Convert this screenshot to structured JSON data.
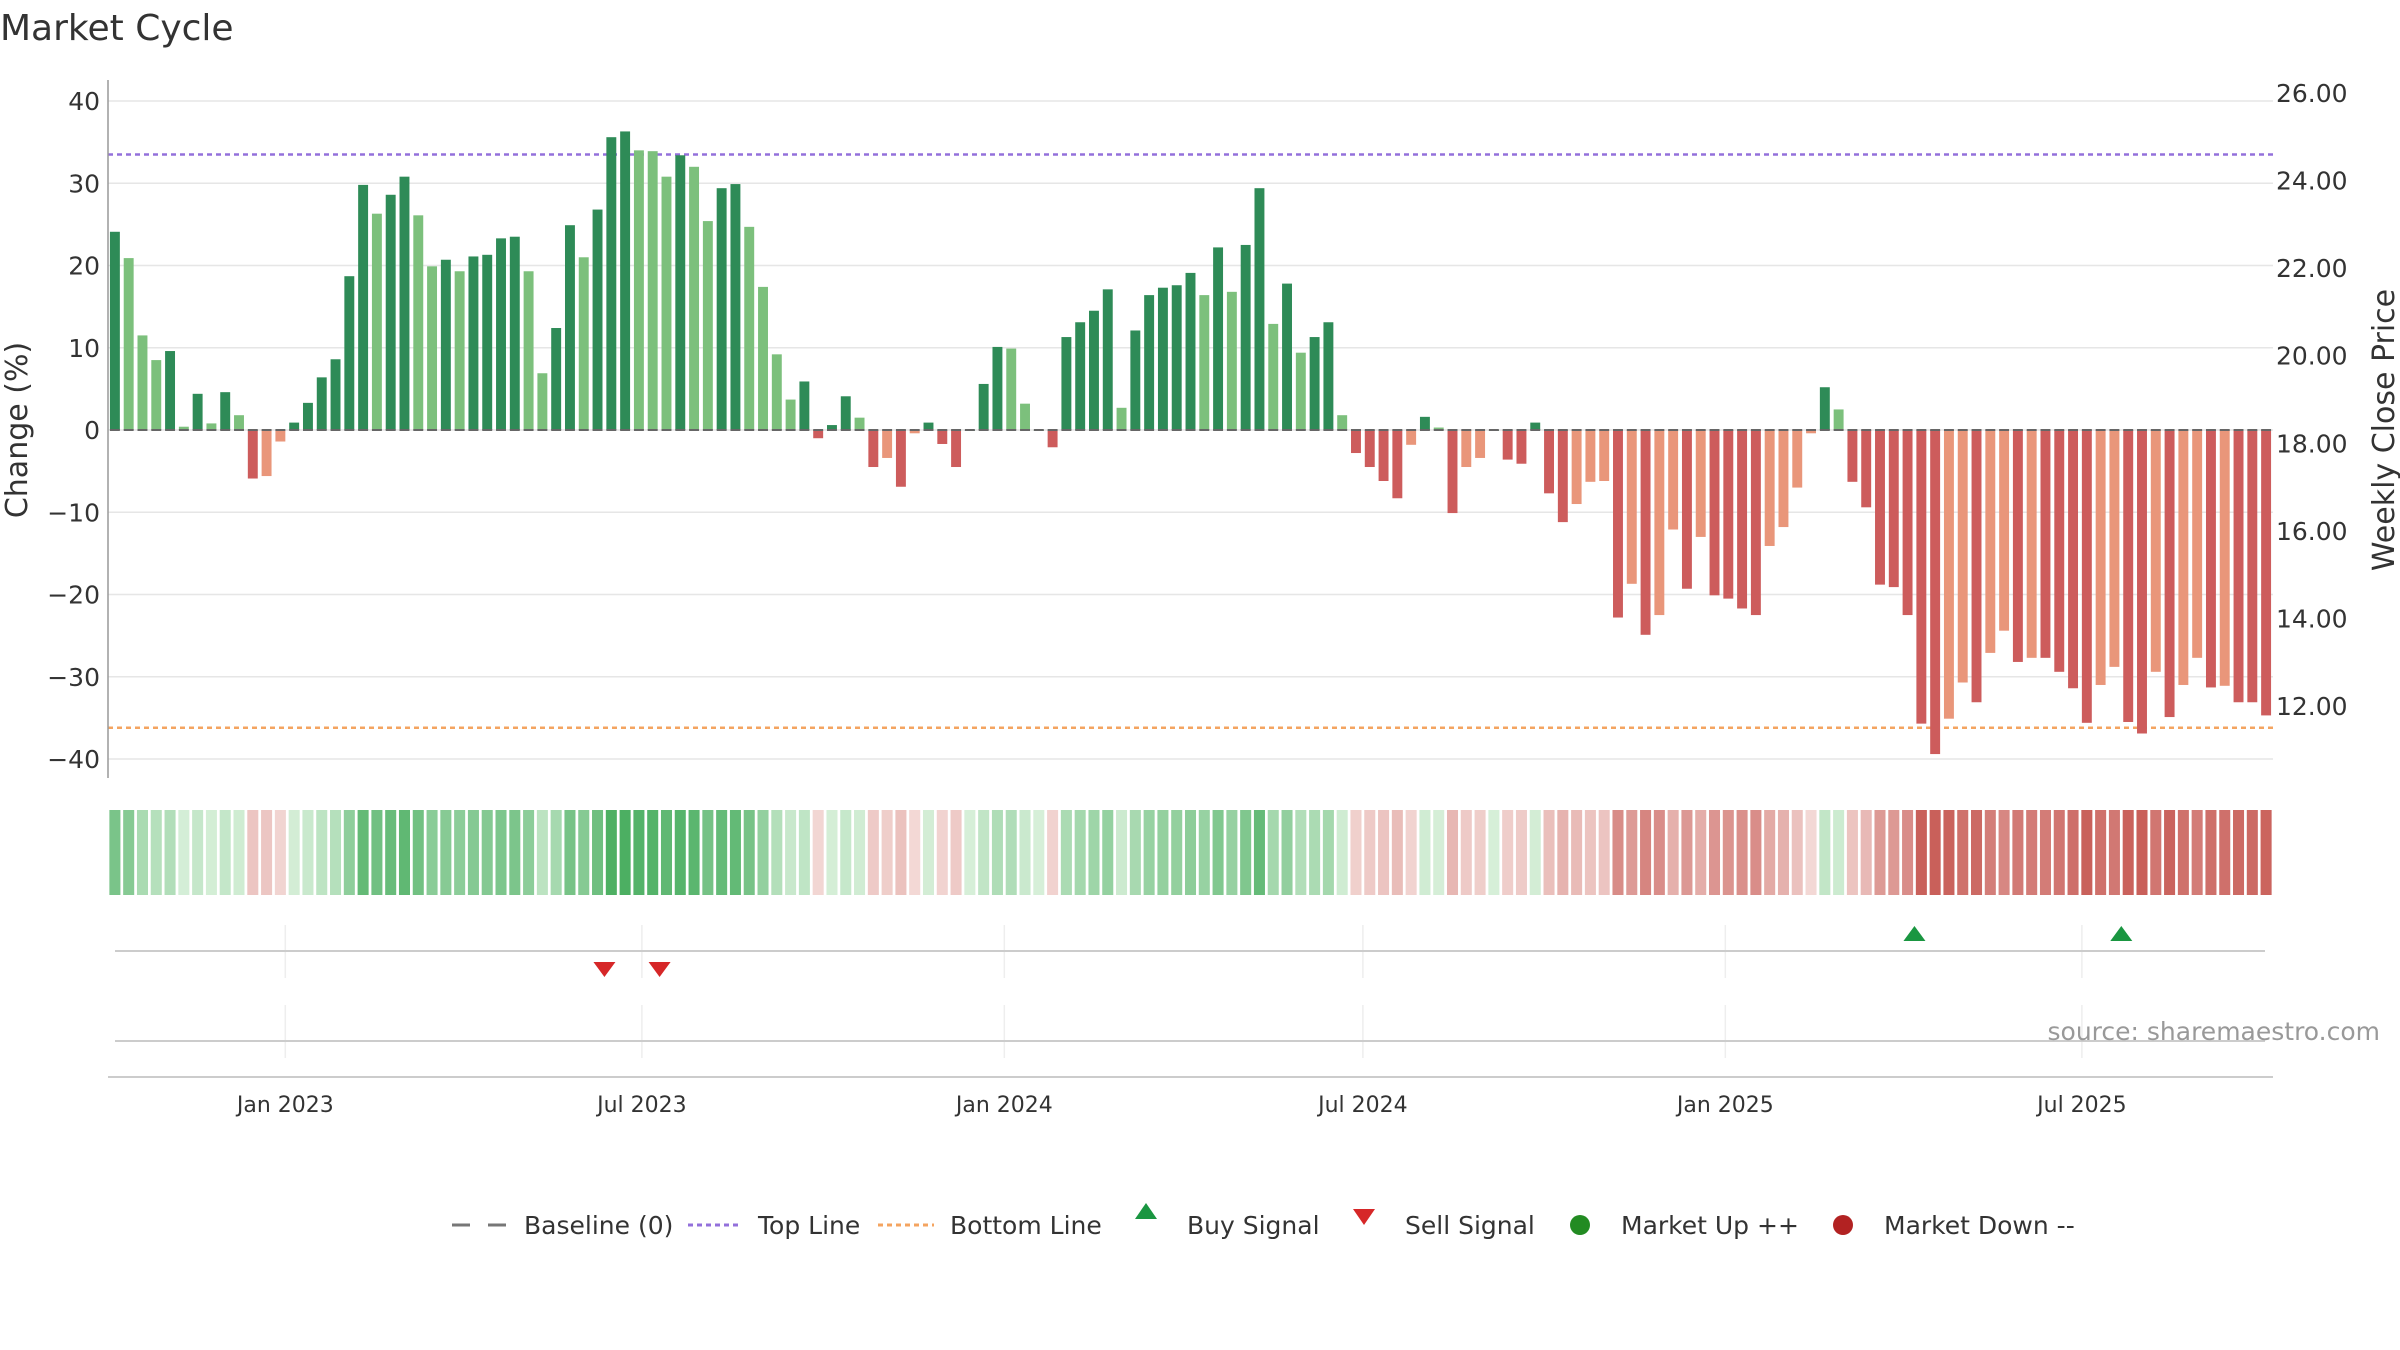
{
  "chart_data": {
    "type": "bar",
    "title": "Market Cycle",
    "ylabel": "Change (%)",
    "y2label": "Weekly Close Price",
    "ylim": [
      -40,
      40
    ],
    "y2lim": [
      12,
      26
    ],
    "yticks": [
      "40",
      "30",
      "20",
      "10",
      "0",
      "−10",
      "−20",
      "−30",
      "−40"
    ],
    "y2ticks": [
      "26.00",
      "24.00",
      "22.00",
      "20.00",
      "18.00",
      "16.00",
      "14.00",
      "12.00"
    ],
    "top_line": 33.5,
    "bottom_line": -36.2,
    "x_start": "2022-10-03",
    "x_end": "2025-10-06",
    "xticks": [
      {
        "date": "2023-01-01",
        "label": "Jan 2023"
      },
      {
        "date": "2023-07-01",
        "label": "Jul 2023"
      },
      {
        "date": "2024-01-01",
        "label": "Jan 2024"
      },
      {
        "date": "2024-07-01",
        "label": "Jul 2024"
      },
      {
        "date": "2025-01-01",
        "label": "Jan 2025"
      },
      {
        "date": "2025-07-01",
        "label": "Jul 2025"
      }
    ],
    "values": [
      24.1,
      20.9,
      11.5,
      8.5,
      9.6,
      0.4,
      4.4,
      0.8,
      4.6,
      1.8,
      -5.9,
      -5.6,
      -1.4,
      0.9,
      3.3,
      6.4,
      8.6,
      18.7,
      29.8,
      26.3,
      28.6,
      30.8,
      26.1,
      19.9,
      20.7,
      19.3,
      21.1,
      21.3,
      23.3,
      23.5,
      19.3,
      6.9,
      12.4,
      24.9,
      21.0,
      26.8,
      35.6,
      36.3,
      34.0,
      33.9,
      30.8,
      33.4,
      32.0,
      25.4,
      29.4,
      29.9,
      24.7,
      17.4,
      9.2,
      3.7,
      5.9,
      -1.0,
      0.6,
      4.1,
      1.5,
      -4.5,
      -3.4,
      -6.9,
      -0.4,
      0.9,
      -1.7,
      -4.5,
      0.0,
      5.6,
      10.1,
      9.9,
      3.2,
      0.0,
      -2.1,
      11.3,
      13.1,
      14.5,
      17.1,
      2.7,
      12.1,
      16.4,
      17.3,
      17.6,
      19.1,
      16.4,
      22.2,
      16.8,
      22.5,
      29.4,
      12.9,
      17.8,
      9.4,
      11.3,
      13.1,
      1.8,
      -2.8,
      -4.5,
      -6.2,
      -8.3,
      -1.8,
      1.6,
      0.3,
      -10.1,
      -4.5,
      -3.4,
      0.0,
      -3.6,
      -4.1,
      0.9,
      -7.7,
      -11.2,
      -9.0,
      -6.3,
      -6.2,
      -22.8,
      -18.7,
      -24.9,
      -22.5,
      -12.1,
      -19.3,
      -13.0,
      -20.1,
      -20.5,
      -21.7,
      -22.5,
      -14.1,
      -11.8,
      -7.0,
      -0.4,
      5.2,
      2.5,
      -6.3,
      -9.4,
      -18.8,
      -19.1,
      -22.5,
      -35.7,
      -39.4,
      -35.1,
      -30.7,
      -33.1,
      -27.1,
      -24.4,
      -28.2,
      -27.7,
      -27.7,
      -29.4,
      -31.4,
      -35.6,
      -31.0,
      -28.8,
      -35.5,
      -36.9,
      -29.4,
      -34.9,
      -31.0,
      -27.7,
      -31.3,
      -31.1,
      -33.1,
      -33.1,
      -34.7
    ],
    "buy_signals": [
      "2025-04-07",
      "2025-07-21"
    ],
    "sell_signals": [
      "2023-06-12",
      "2023-07-10"
    ],
    "source": "source: sharemaestro.com",
    "legend": [
      {
        "key": "baseline",
        "label": "Baseline (0)"
      },
      {
        "key": "top",
        "label": "Top Line"
      },
      {
        "key": "bottom",
        "label": "Bottom Line"
      },
      {
        "key": "buy",
        "label": "Buy Signal"
      },
      {
        "key": "sell",
        "label": "Sell Signal"
      },
      {
        "key": "up",
        "label": "Market Up ++"
      },
      {
        "key": "down",
        "label": "Market Down --"
      }
    ],
    "colors": {
      "up_strong": "#2e8b57",
      "up_weak": "#7cc07c",
      "down_strong": "#cd5c5c",
      "down_weak": "#e9967a",
      "top_line": "#9370db",
      "bottom_line": "#f4a460",
      "baseline": "#666666",
      "buy": "#1a9641",
      "sell": "#d62728",
      "market_up": "#228b22",
      "market_down": "#b22222",
      "grid": "#e6e6e6"
    }
  }
}
